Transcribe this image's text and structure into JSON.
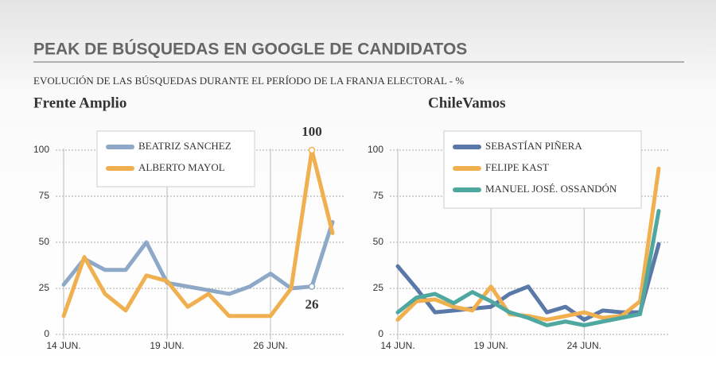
{
  "title": "PEAK DE BÚSQUEDAS EN GOOGLE DE CANDIDATOS",
  "subtitle": "EVOLUCIÓN DE LAS BÚSQUEDAS DURANTE EL PERÍODO DE LA FRANJA ELECTORAL - %",
  "chart_data": [
    {
      "type": "line",
      "title": "Frente Amplio",
      "categories": [
        "14 JUN.",
        null,
        null,
        null,
        null,
        "19 JUN.",
        null,
        null,
        null,
        null,
        "26 JUN.",
        null,
        null,
        null
      ],
      "series": [
        {
          "name": "BEATRIZ SANCHEZ",
          "color": "#8ea8c8",
          "values": [
            27,
            41,
            35,
            35,
            50,
            28,
            26,
            24,
            22,
            26,
            33,
            25,
            26,
            61
          ]
        },
        {
          "name": "ALBERTO MAYOL",
          "color": "#f0b050",
          "values": [
            10,
            42,
            22,
            13,
            32,
            29,
            15,
            22,
            10,
            10,
            10,
            25,
            100,
            55
          ]
        }
      ],
      "annotations": [
        "100",
        "26"
      ],
      "ylim": [
        0,
        100
      ],
      "yticks": [
        0,
        25,
        50,
        75,
        100
      ],
      "grid": true
    },
    {
      "type": "line",
      "title": "ChileVamos",
      "categories": [
        "14 JUN.",
        null,
        null,
        null,
        null,
        "19 JUN.",
        null,
        null,
        null,
        null,
        "24 JUN.",
        null,
        null,
        null,
        null
      ],
      "series": [
        {
          "name": "SEBASTÍAN PIÑERA",
          "color": "#5a78a8",
          "values": [
            37,
            25,
            12,
            13,
            14,
            15,
            22,
            26,
            12,
            15,
            8,
            13,
            12,
            12,
            49
          ]
        },
        {
          "name": "FELIPE KAST",
          "color": "#f0b050",
          "values": [
            8,
            18,
            19,
            15,
            13,
            26,
            11,
            10,
            8,
            10,
            12,
            9,
            10,
            18,
            90
          ]
        },
        {
          "name": "MANUEL JOSÉ. OSSANDÓN",
          "color": "#4fa8a0",
          "values": [
            12,
            20,
            22,
            17,
            23,
            18,
            12,
            9,
            5,
            7,
            5,
            7,
            9,
            11,
            67
          ]
        }
      ],
      "ylim": [
        0,
        100
      ],
      "yticks": [
        0,
        25,
        50,
        75,
        100
      ],
      "grid": true
    }
  ]
}
